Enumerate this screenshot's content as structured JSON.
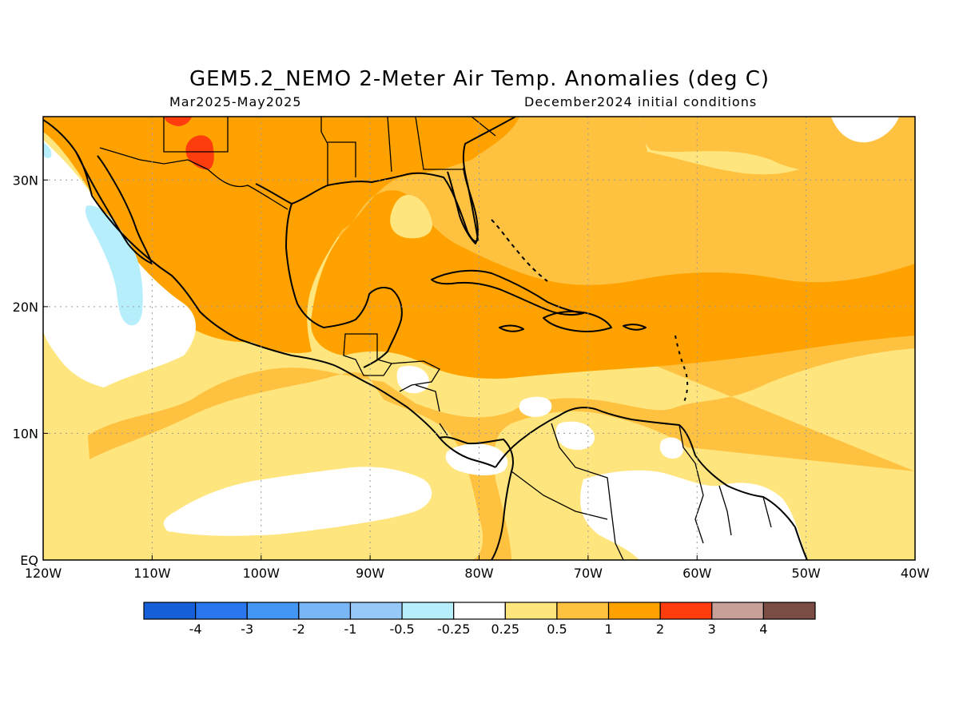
{
  "title": "GEM5.2_NEMO 2-Meter Air Temp. Anomalies (deg C)",
  "subtitle_left": "Mar2025-May2025",
  "subtitle_right": "December2024 initial conditions",
  "map": {
    "lon_range": [
      -120,
      -40
    ],
    "lat_range": [
      0,
      35
    ],
    "x_ticks": [
      {
        "value": -120,
        "label": "120W"
      },
      {
        "value": -110,
        "label": "110W"
      },
      {
        "value": -100,
        "label": "100W"
      },
      {
        "value": -90,
        "label": "90W"
      },
      {
        "value": -80,
        "label": "80W"
      },
      {
        "value": -70,
        "label": "70W"
      },
      {
        "value": -60,
        "label": "60W"
      },
      {
        "value": -50,
        "label": "50W"
      },
      {
        "value": -40,
        "label": "40W"
      }
    ],
    "y_ticks": [
      {
        "value": 0,
        "label": "EQ"
      },
      {
        "value": 10,
        "label": "10N"
      },
      {
        "value": 20,
        "label": "20N"
      },
      {
        "value": 30,
        "label": "30N"
      }
    ],
    "grid": "dotted"
  },
  "colorbar": {
    "colors": [
      "#1560d8",
      "#2a76ee",
      "#4496f4",
      "#79b6f6",
      "#97c9f8",
      "#b6eefc",
      "#ffffff",
      "#ffe57d",
      "#ffc140",
      "#ffa200",
      "#ff3c0e",
      "#c7a098",
      "#7b4d44"
    ],
    "labels": [
      "-4",
      "-3",
      "-2",
      "-1",
      "-0.5",
      "-0.25",
      "0.25",
      "0.5",
      "1",
      "2",
      "3",
      "4"
    ]
  },
  "palette": {
    "white": "#ffffff",
    "light_blue": "#b6eefc",
    "light_yellow": "#ffe57d",
    "yellow_orange": "#ffc140",
    "orange": "#ffa200",
    "red": "#ff3c0e",
    "coast": "#000000",
    "grid": "#999999"
  }
}
